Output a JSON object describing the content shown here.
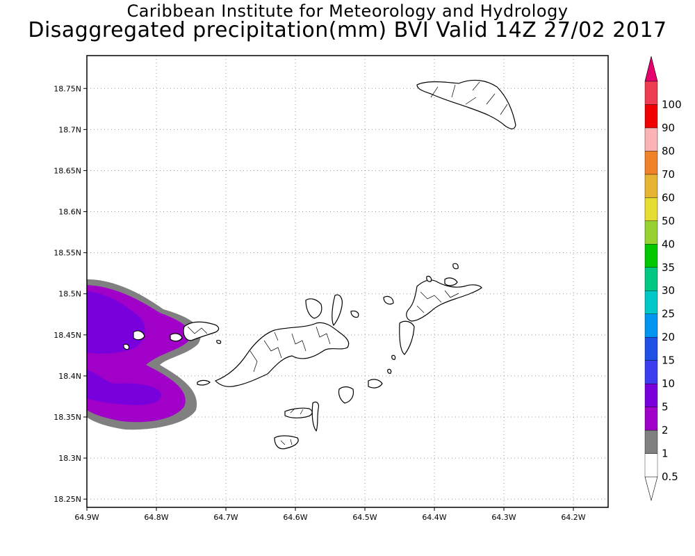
{
  "title": {
    "line1": "Caribbean Institute for Meteorology and Hydrology",
    "line2": "Disaggregated precipitation(mm) BVI Valid 14Z 27/02 2017"
  },
  "map": {
    "lon_range": [
      -64.9,
      -64.15
    ],
    "lat_range": [
      18.24,
      18.79
    ],
    "lat_ticks": [
      {
        "value": 18.25,
        "label": "18.25N"
      },
      {
        "value": 18.3,
        "label": "18.3N"
      },
      {
        "value": 18.35,
        "label": "18.35N"
      },
      {
        "value": 18.4,
        "label": "18.4N"
      },
      {
        "value": 18.45,
        "label": "18.45N"
      },
      {
        "value": 18.5,
        "label": "18.5N"
      },
      {
        "value": 18.55,
        "label": "18.55N"
      },
      {
        "value": 18.6,
        "label": "18.6N"
      },
      {
        "value": 18.65,
        "label": "18.65N"
      },
      {
        "value": 18.7,
        "label": "18.7N"
      },
      {
        "value": 18.75,
        "label": "18.75N"
      }
    ],
    "lon_ticks": [
      {
        "value": -64.9,
        "label": "64.9W"
      },
      {
        "value": -64.8,
        "label": "64.8W"
      },
      {
        "value": -64.7,
        "label": "64.7W"
      },
      {
        "value": -64.6,
        "label": "64.6W"
      },
      {
        "value": -64.5,
        "label": "64.5W"
      },
      {
        "value": -64.4,
        "label": "64.4W"
      },
      {
        "value": -64.3,
        "label": "64.3W"
      },
      {
        "value": -64.2,
        "label": "64.2W"
      }
    ],
    "gridlines": "dotted"
  },
  "colorbar": {
    "levels": [
      {
        "label": "0.5",
        "color": "#ffffff"
      },
      {
        "label": "1",
        "color": "#808080"
      },
      {
        "label": "2",
        "color": "#a000c8"
      },
      {
        "label": "5",
        "color": "#7800dc"
      },
      {
        "label": "10",
        "color": "#3c3cf0"
      },
      {
        "label": "15",
        "color": "#1e50e6"
      },
      {
        "label": "20",
        "color": "#0096f0"
      },
      {
        "label": "25",
        "color": "#00c8c8"
      },
      {
        "label": "30",
        "color": "#00c882"
      },
      {
        "label": "35",
        "color": "#00c800"
      },
      {
        "label": "40",
        "color": "#96d232"
      },
      {
        "label": "50",
        "color": "#e6dc32"
      },
      {
        "label": "60",
        "color": "#e6b432"
      },
      {
        "label": "70",
        "color": "#f08228"
      },
      {
        "label": "80",
        "color": "#fab4b4"
      },
      {
        "label": "90",
        "color": "#f00000"
      },
      {
        "label": "100",
        "color": "#f03c50"
      }
    ],
    "top_arrow_color": "#e6006e",
    "bottom_arrow_color": "#ffffff"
  },
  "colors": {
    "precip_1": "#808080",
    "precip_2": "#a000c8",
    "precip_5": "#7800dc",
    "island_fill": "#ffffff",
    "island_outline": "#000000"
  }
}
